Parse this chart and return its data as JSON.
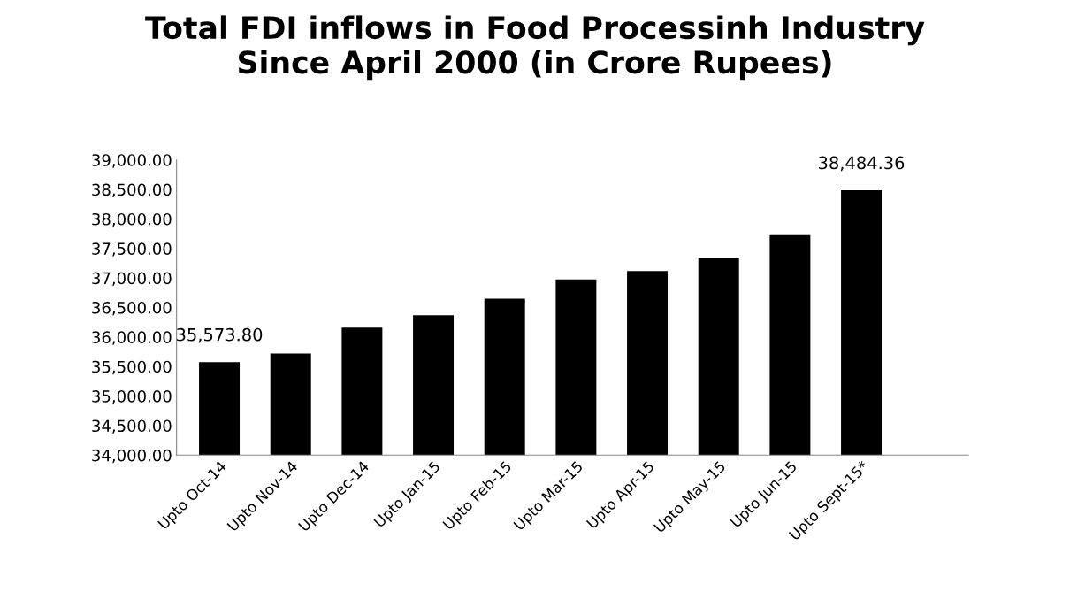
{
  "chart_data": {
    "type": "bar",
    "title": "Total FDI inflows in Food Processinh Industry\nSince April 2000 (in Crore Rupees)",
    "categories": [
      "Upto Oct-14",
      "Upto Nov-14",
      "Upto Dec-14",
      "Upto Jan-15",
      "Upto Feb-15",
      "Upto Mar-15",
      "Upto Apr-15",
      "Upto May-15",
      "Upto Jun-15",
      "Upto Sept-15*"
    ],
    "values": [
      35573.8,
      35720,
      36160,
      36370,
      36650,
      36975,
      37120,
      37345,
      37725,
      38484.36
    ],
    "value_labels": [
      "35,573.80",
      null,
      null,
      null,
      null,
      null,
      null,
      null,
      null,
      "38,484.36"
    ],
    "color": "#000000",
    "ylim": [
      34000,
      39000
    ],
    "yticks": [
      {
        "value": 34000,
        "label": "34,000.00"
      },
      {
        "value": 34500,
        "label": "34,500.00"
      },
      {
        "value": 35000,
        "label": "35,000.00"
      },
      {
        "value": 35500,
        "label": "35,500.00"
      },
      {
        "value": 36000,
        "label": "36,000.00"
      },
      {
        "value": 36500,
        "label": "36,500.00"
      },
      {
        "value": 37000,
        "label": "37,000.00"
      },
      {
        "value": 37500,
        "label": "37,500.00"
      },
      {
        "value": 38000,
        "label": "38,000.00"
      },
      {
        "value": 38500,
        "label": "38,500.00"
      },
      {
        "value": 39000,
        "label": "39,000.00"
      }
    ],
    "grid": false,
    "legend": false
  }
}
